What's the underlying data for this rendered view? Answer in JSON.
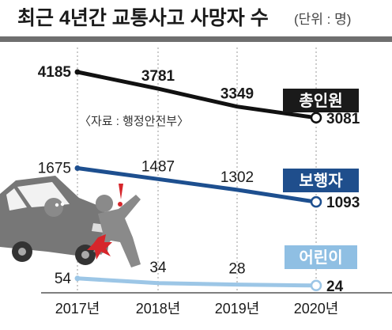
{
  "chart_data": {
    "type": "line",
    "title": "최근 4년간 교통사고 사망자 수",
    "unit_note": "(단위 : 명)",
    "source": "〈자료 : 행정안전부〉",
    "categories": [
      "2017년",
      "2018년",
      "2019년",
      "2020년"
    ],
    "ylabel": "",
    "xlabel": "",
    "grid": true,
    "series": [
      {
        "name": "총인원",
        "values": [
          4185,
          3781,
          3349,
          3081
        ],
        "color": "#111111",
        "badge_color": "#1a1a1a"
      },
      {
        "name": "보행자",
        "values": [
          1675,
          1487,
          1302,
          1093
        ],
        "color": "#1d4f8f",
        "badge_color": "#1f4e8c"
      },
      {
        "name": "어린이",
        "values": [
          54,
          34,
          28,
          24
        ],
        "color": "#9cc6e6",
        "badge_color": "#8fbfe3"
      }
    ]
  },
  "colors": {
    "background": "#ffffff",
    "title_bar": "#6f6f6f",
    "grid": "#9a9a9a",
    "illustration": "#7a7a7a",
    "accent_red": "#d6262b"
  },
  "illustration": {
    "icon": "car-accident-pedestrian-icon"
  }
}
